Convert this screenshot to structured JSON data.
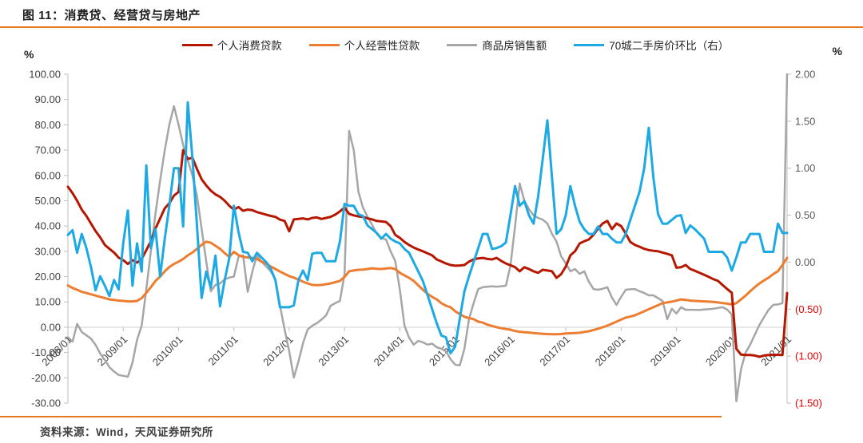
{
  "header": {
    "title": "图 11：消费贷、经营贷与房地产"
  },
  "footer": {
    "source_label": "资料来源：Wind，天风证券研究所"
  },
  "accent_color": "#e87722",
  "chart_data": {
    "type": "line",
    "title": "图 11：消费贷、经营贷与房地产",
    "x_unit": "month",
    "x_start": "2008/01",
    "x_end": "2021/01",
    "x_tick_labels": [
      "2008/01",
      "2009/01",
      "2010/01",
      "2011/01",
      "2012/01",
      "2013/01",
      "2014/01",
      "2015/01",
      "2016/01",
      "2017/01",
      "2018/01",
      "2019/01",
      "2020/01",
      "2021/01"
    ],
    "grid": "zero-line-only",
    "legend_position": "top",
    "left_axis": {
      "unit_label": "%",
      "min": -30,
      "max": 100,
      "step": 10,
      "tick_labels": [
        "100.00",
        "90.00",
        "80.00",
        "70.00",
        "60.00",
        "50.00",
        "40.00",
        "30.00",
        "20.00",
        "10.00",
        "0.00",
        "-10.00",
        "-20.00",
        "-30.00"
      ],
      "label_color": "#404040"
    },
    "right_axis": {
      "unit_label": "%",
      "min": -1.5,
      "max": 2,
      "step": 0.5,
      "tick_labels": [
        "2.00",
        "1.50",
        "1.00",
        "0.50",
        "0.00",
        "(0.50)",
        "(1.00)",
        "(1.50)"
      ],
      "label_color": "#595959",
      "negative_label_color": "#e60000"
    },
    "series": [
      {
        "name": "个人消费贷款",
        "color": "#b51700",
        "axis": "left",
        "width": 3,
        "values": [
          55.5,
          53,
          50,
          46.5,
          44,
          41,
          38,
          35.5,
          32.5,
          31,
          29.5,
          27.5,
          26.5,
          25,
          26.5,
          25.5,
          27,
          30.5,
          34,
          39,
          43,
          47,
          49,
          52,
          53.5,
          70,
          66.5,
          67,
          62.5,
          58.5,
          56,
          54,
          52.5,
          51.5,
          50,
          48,
          46.5,
          47.5,
          46,
          46.5,
          46.3,
          45.5,
          45,
          44.5,
          44,
          43.6,
          42.5,
          42,
          37.9,
          42.6,
          42.8,
          43,
          42.6,
          43.2,
          43.4,
          42.8,
          43.2,
          43.6,
          44.5,
          45.8,
          47.3,
          44.8,
          44.2,
          43.8,
          43.6,
          43,
          42.6,
          42,
          41.8,
          41.6,
          40,
          36.5,
          35.3,
          33.7,
          32.5,
          31.5,
          30.7,
          30,
          29.2,
          28.4,
          26.8,
          26,
          25.2,
          24.6,
          24.3,
          24.4,
          24.6,
          25.9,
          26.8,
          27.2,
          27.4,
          27,
          26.8,
          27.4,
          26.2,
          25.2,
          24.5,
          23.7,
          22.1,
          23.7,
          23,
          22.1,
          21.5,
          22.7,
          22.4,
          22.1,
          19.5,
          21,
          24,
          28.4,
          30,
          33.1,
          34,
          34.7,
          36.5,
          39,
          41,
          42,
          38.8,
          41,
          40,
          37,
          33.7,
          32.5,
          31.8,
          31,
          30.5,
          30.2,
          30,
          29.5,
          29,
          28.4,
          23.5,
          23.7,
          24.6,
          23,
          22.3,
          21.5,
          20.7,
          19.9,
          19,
          18.3,
          16.7,
          15.1,
          13.6,
          -8.5,
          -10.8,
          -11,
          -11,
          -11.2,
          -11.7,
          -11.2,
          -11,
          -10.9,
          -10.9,
          -11,
          13.5
        ]
      },
      {
        "name": "个人经营性贷款",
        "color": "#ed7d31",
        "axis": "left",
        "width": 3,
        "values": [
          16.5,
          15.5,
          14.8,
          14,
          13.5,
          13,
          12.5,
          12,
          11.5,
          11,
          10.8,
          10.5,
          10.4,
          10.2,
          10.2,
          10.4,
          11.5,
          13.6,
          15.8,
          18.3,
          20,
          22.1,
          23.8,
          25,
          25.9,
          27,
          28.4,
          29.5,
          31,
          32.5,
          33.8,
          33.4,
          32.2,
          31,
          29.3,
          27.8,
          29.8,
          28.5,
          27.8,
          27.6,
          27.4,
          27,
          25.9,
          25.2,
          24,
          23,
          22,
          21.1,
          20.2,
          19.6,
          18.8,
          18,
          17.3,
          16.7,
          16.6,
          16.7,
          17,
          17.3,
          17.8,
          18.3,
          19.9,
          22.1,
          22.4,
          22.7,
          22.8,
          23,
          23.3,
          23.1,
          23,
          23.2,
          23.4,
          23,
          21.5,
          20.5,
          19.5,
          18.3,
          16.5,
          14.8,
          13.2,
          12,
          11,
          9.5,
          8.5,
          7.9,
          6.3,
          5.2,
          4.1,
          3.6,
          3.2,
          2.2,
          1.8,
          1.0,
          0.5,
          0,
          -0.4,
          -0.7,
          -1.0,
          -1.5,
          -1.8,
          -2.0,
          -2.1,
          -2.3,
          -2.5,
          -2.6,
          -2.7,
          -2.8,
          -2.8,
          -2.7,
          -2.5,
          -2.4,
          -2.3,
          -2.2,
          -1.9,
          -1.6,
          -1.1,
          -0.6,
          0,
          0.6,
          1.4,
          2.2,
          3,
          3.8,
          4.2,
          4.7,
          5.5,
          6.3,
          7.1,
          7.9,
          8.7,
          9.5,
          9.8,
          10.1,
          10.5,
          11,
          10.8,
          10.5,
          10.4,
          10.3,
          10.2,
          10.1,
          10,
          9.8,
          9.5,
          9.3,
          9,
          9.5,
          11,
          12.5,
          14.2,
          15.8,
          17.3,
          18.5,
          19.6,
          21,
          22.1,
          24.6,
          27.4
        ]
      },
      {
        "name": "商品房销售额",
        "color": "#a6a6a6",
        "axis": "left",
        "width": 2.5,
        "values": [
          -4,
          -5.7,
          1.3,
          -1.9,
          -3.2,
          -4.5,
          -7,
          -10.4,
          -13,
          -15.8,
          -17.5,
          -18.9,
          -19.2,
          -19.6,
          -14,
          -5,
          0.6,
          15,
          30,
          45,
          58,
          70,
          80,
          87.4,
          80,
          72,
          66,
          60,
          52,
          39,
          26,
          14.2,
          16.7,
          17.3,
          18.9,
          19.6,
          20,
          27.8,
          28.4,
          14,
          22,
          28.4,
          25.9,
          24,
          22.1,
          18.9,
          8.5,
          -0.9,
          -9.5,
          -19.9,
          -13.6,
          -6.3,
          -0.9,
          0.6,
          1.6,
          3,
          4.7,
          8.5,
          9.5,
          10.4,
          21.1,
          77.6,
          70,
          53.6,
          47.3,
          43.6,
          40.4,
          36.9,
          35.3,
          34.7,
          30,
          26.2,
          14.8,
          0.6,
          -4.1,
          -6.9,
          -5.4,
          -6,
          -6.9,
          -6.5,
          -7.9,
          -8.5,
          -9.5,
          -12.6,
          -14.8,
          -15.1,
          -8.5,
          3.2,
          9.5,
          15.1,
          15.8,
          16,
          16.2,
          16,
          16.2,
          16.4,
          24.3,
          40,
          56.8,
          50,
          46.7,
          44.2,
          43.2,
          42.5,
          41,
          36.9,
          33.8,
          28,
          25.2,
          22.1,
          23,
          21.1,
          22.1,
          18,
          15.1,
          14.8,
          15.2,
          15.8,
          11.7,
          8.8,
          12,
          14.8,
          15,
          15.1,
          14.2,
          13.5,
          12.6,
          12.6,
          11.5,
          10.4,
          3.2,
          7.3,
          5.4,
          7.9,
          6.9,
          6.9,
          6.9,
          6.8,
          7,
          7.1,
          7.3,
          7.6,
          7.9,
          7,
          5,
          -29.3,
          -16.7,
          -10,
          -6.9,
          -3,
          0.9,
          4,
          6.9,
          8.8,
          9,
          9.5,
          100
        ]
      },
      {
        "name": "70城二手房价环比（右）",
        "color": "#1ca9e4",
        "axis": "right",
        "width": 3,
        "values": [
          0.29,
          0.34,
          0.1,
          0.3,
          0.15,
          -0.05,
          -0.3,
          -0.15,
          -0.25,
          -0.36,
          -0.19,
          -0.29,
          0.2,
          0.55,
          -0.25,
          0.2,
          -0.1,
          1.03,
          0.15,
          0.35,
          -0.15,
          0.25,
          0.6,
          1.0,
          1.0,
          0.38,
          1.7,
          1.11,
          0.39,
          -0.38,
          -0.1,
          -0.27,
          0.07,
          -0.47,
          -0.19,
          0.04,
          0.6,
          0.32,
          0.11,
          0.1,
          0.01,
          0.1,
          0.05,
          0.0,
          -0.07,
          -0.19,
          -0.48,
          -0.48,
          -0.48,
          -0.46,
          -0.19,
          -0.09,
          -0.19,
          0.09,
          0.1,
          0.1,
          0.01,
          0.01,
          0.01,
          0.22,
          0.62,
          0.6,
          0.6,
          0.51,
          0.49,
          0.39,
          0.35,
          0.31,
          0.25,
          0.3,
          0.25,
          0.22,
          0.2,
          0.14,
          0.1,
          0.0,
          -0.1,
          -0.2,
          -0.35,
          -0.5,
          -0.65,
          -0.78,
          -0.8,
          -0.97,
          -0.9,
          -0.6,
          -0.31,
          -0.15,
          0.0,
          0.15,
          0.3,
          0.3,
          0.14,
          0.15,
          0.17,
          0.21,
          0.5,
          0.81,
          0.6,
          0.65,
          0.5,
          0.41,
          0.7,
          1.1,
          1.51,
          0.9,
          0.3,
          0.35,
          0.5,
          0.81,
          0.6,
          0.43,
          0.35,
          0.3,
          0.3,
          0.38,
          0.3,
          0.3,
          0.25,
          0.21,
          0.21,
          0.3,
          0.45,
          0.6,
          0.75,
          1.0,
          1.43,
          0.9,
          0.51,
          0.41,
          0.41,
          0.45,
          0.49,
          0.5,
          0.31,
          0.39,
          0.35,
          0.3,
          0.25,
          0.11,
          0.11,
          0.11,
          0.11,
          0.05,
          -0.09,
          0.05,
          0.21,
          0.21,
          0.3,
          0.3,
          0.3,
          0.11,
          0.11,
          0.11,
          0.41,
          0.31,
          0.31
        ]
      }
    ]
  }
}
